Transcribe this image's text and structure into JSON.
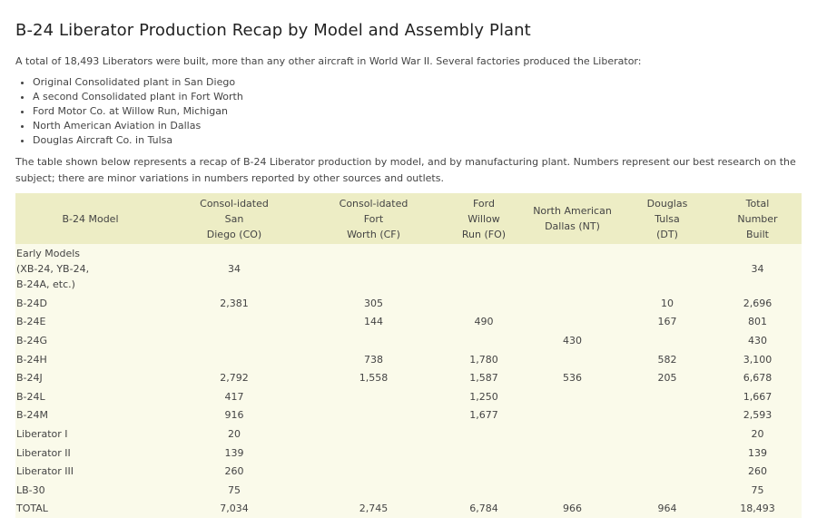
{
  "title": "B-24 Liberator Production Recap by Model and Assembly Plant",
  "intro": "A total of 18,493 Liberators were built, more than any other aircraft in World War II. Several factories produced the Liberator:",
  "plants": [
    "Original Consolidated plant in San Diego",
    "A second Consolidated plant in Fort Worth",
    "Ford Motor Co. at Willow Run, Michigan",
    "North American Aviation in Dallas",
    "Douglas Aircraft Co. in Tulsa"
  ],
  "paragraph": "The table shown below represents a recap of B-24 Liberator production by model, and by manufacturing plant. Numbers represent our best research on the subject; there are minor variations in numbers reported by other sources and outlets.",
  "table": {
    "headers": [
      [
        "B-24 Model"
      ],
      [
        "Consol-idated",
        "San",
        "Diego (CO)"
      ],
      [
        "Consol-idated",
        "Fort",
        "Worth (CF)"
      ],
      [
        "Ford",
        "Willow",
        "Run (FO)"
      ],
      [
        "North American",
        "Dallas (NT)"
      ],
      [
        "Douglas",
        "Tulsa",
        "(DT)"
      ],
      [
        "Total",
        "Number",
        "Built"
      ]
    ],
    "rows": [
      {
        "model": [
          "Early Models",
          "(XB-24, YB-24,",
          "B-24A, etc.)"
        ],
        "values": [
          "34",
          "",
          "",
          "",
          "",
          "34"
        ]
      },
      {
        "model": [
          "B-24D"
        ],
        "values": [
          "2,381",
          "305",
          "",
          "",
          "10",
          "2,696"
        ]
      },
      {
        "model": [
          "B-24E"
        ],
        "values": [
          "",
          "144",
          "490",
          "",
          "167",
          "801"
        ]
      },
      {
        "model": [
          "B-24G"
        ],
        "values": [
          "",
          "",
          "",
          "430",
          "",
          "430"
        ]
      },
      {
        "model": [
          "B-24H"
        ],
        "values": [
          "",
          "738",
          "1,780",
          "",
          "582",
          "3,100"
        ]
      },
      {
        "model": [
          "B-24J"
        ],
        "values": [
          "2,792",
          "1,558",
          "1,587",
          "536",
          "205",
          "6,678"
        ]
      },
      {
        "model": [
          "B-24L"
        ],
        "values": [
          "417",
          "",
          "1,250",
          "",
          "",
          "1,667"
        ]
      },
      {
        "model": [
          "B-24M"
        ],
        "values": [
          "916",
          "",
          "1,677",
          "",
          "",
          "2,593"
        ]
      },
      {
        "model": [
          "Liberator I"
        ],
        "values": [
          "20",
          "",
          "",
          "",
          "",
          "20"
        ]
      },
      {
        "model": [
          "Liberator II"
        ],
        "values": [
          "139",
          "",
          "",
          "",
          "",
          "139"
        ]
      },
      {
        "model": [
          "Liberator III"
        ],
        "values": [
          "260",
          "",
          "",
          "",
          "",
          "260"
        ]
      },
      {
        "model": [
          "LB-30"
        ],
        "values": [
          "75",
          "",
          "",
          "",
          "",
          "75"
        ]
      },
      {
        "model": [
          "TOTAL"
        ],
        "values": [
          "7,034",
          "2,745",
          "6,784",
          "966",
          "964",
          "18,493"
        ]
      }
    ]
  },
  "colors": {
    "header_bg": "#ededc5",
    "body_bg": "#fafaea",
    "text": "#444444"
  }
}
